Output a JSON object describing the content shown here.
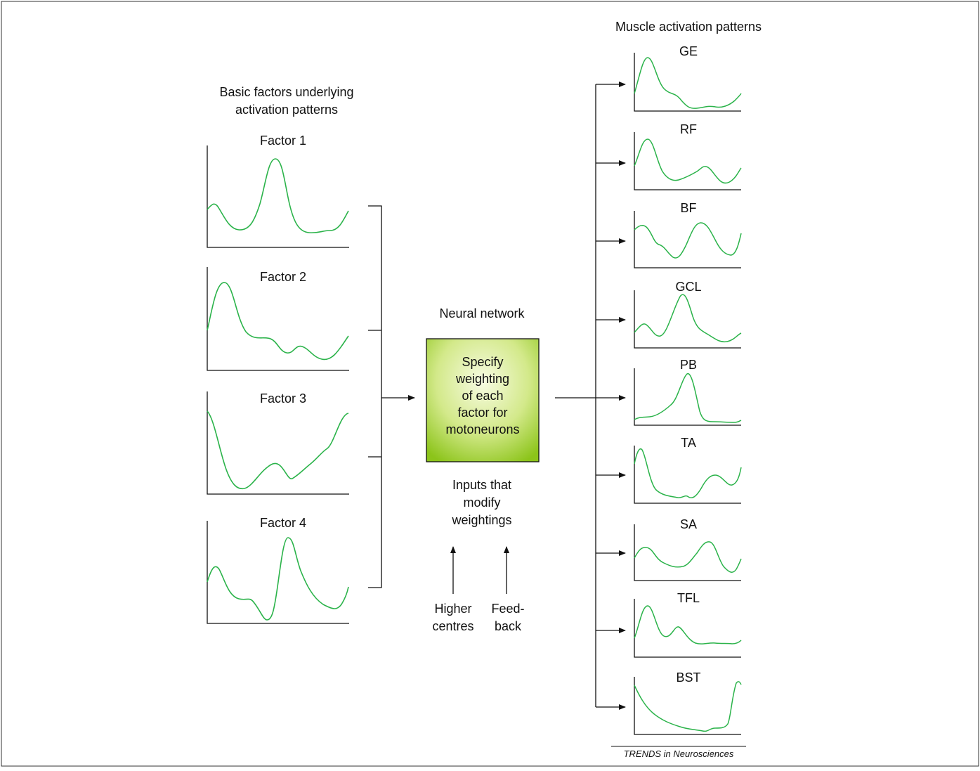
{
  "left_heading": [
    "Basic factors underlying",
    "activation patterns"
  ],
  "right_heading": "Muscle activation patterns",
  "factors": [
    "Factor 1",
    "Factor 2",
    "Factor 3",
    "Factor 4"
  ],
  "network": {
    "title": "Neural network",
    "box_lines": [
      "Specify",
      "weighting",
      "of each",
      "factor for",
      "motoneurons"
    ],
    "inputs_lines": [
      "Inputs that",
      "modify",
      "weightings"
    ],
    "higher_centres": [
      "Higher",
      "centres"
    ],
    "feedback": [
      "Feed-",
      "back"
    ]
  },
  "muscles": [
    "GE",
    "RF",
    "BF",
    "GCL",
    "PB",
    "TA",
    "SA",
    "TFL",
    "BST"
  ],
  "journal": "TRENDS in Neurosciences",
  "colors": {
    "trace": "#2bb34a",
    "box_center": "#f4f9d2",
    "box_edge": "#8cc41a",
    "line": "#111111"
  }
}
